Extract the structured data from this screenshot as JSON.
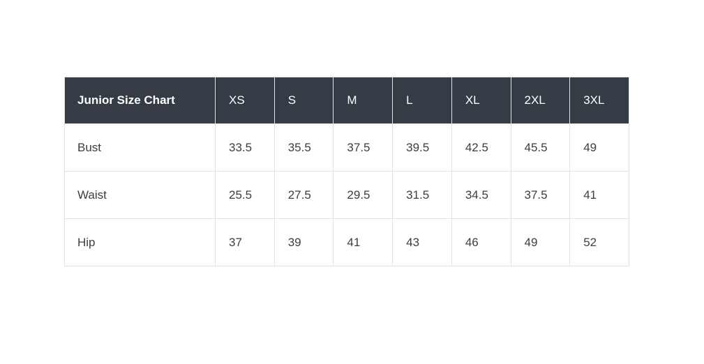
{
  "chart_data": {
    "type": "table",
    "title": "Junior Size Chart",
    "columns": [
      "XS",
      "S",
      "M",
      "L",
      "XL",
      "2XL",
      "3XL"
    ],
    "rows": [
      {
        "label": "Bust",
        "values": [
          "33.5",
          "35.5",
          "37.5",
          "39.5",
          "42.5",
          "45.5",
          "49"
        ]
      },
      {
        "label": "Waist",
        "values": [
          "25.5",
          "27.5",
          "29.5",
          "31.5",
          "34.5",
          "37.5",
          "41"
        ]
      },
      {
        "label": "Hip",
        "values": [
          "37",
          "39",
          "41",
          "43",
          "46",
          "49",
          "52"
        ]
      }
    ],
    "layout": {
      "header_position": "top",
      "grid": true,
      "first_column_is_row_labels": true
    },
    "colors": {
      "header_bg": "#363c45",
      "header_text": "#ffffff",
      "body_bg": "#ffffff",
      "body_text": "#3d3d3d",
      "border": "#e2e2e2"
    }
  }
}
